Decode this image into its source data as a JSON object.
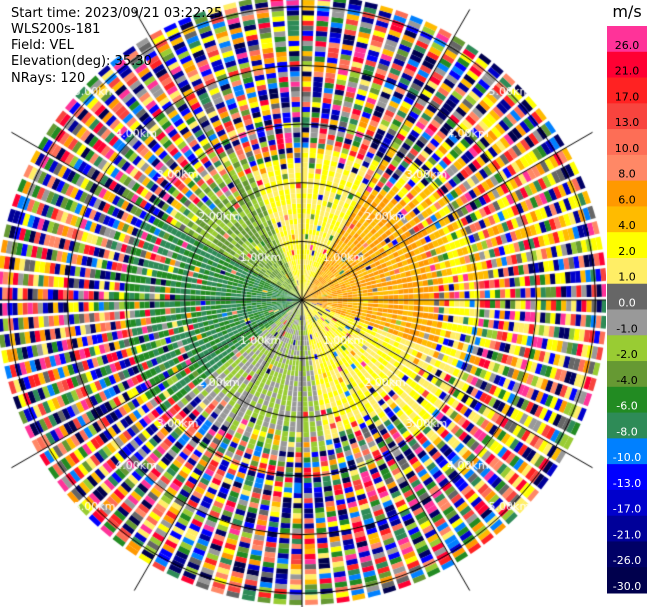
{
  "header": {
    "start_time": "Start time: 2023/09/21 03:22:25",
    "instrument": "WLS200s-181",
    "field": "Field: VEL",
    "elevation": "Elevation(deg): 35.30",
    "nrays": "NRays: 120"
  },
  "colorbar": {
    "unit": "m/s",
    "ticks": [
      "26.0",
      "21.0",
      "17.0",
      "13.0",
      "10.0",
      "8.0",
      "6.0",
      "4.0",
      "2.0",
      "1.0",
      "0.0",
      "-1.0",
      "-2.0",
      "-4.0",
      "-6.0",
      "-8.0",
      "-10.0",
      "-13.0",
      "-17.0",
      "-21.0",
      "-26.0",
      "-30.0"
    ],
    "colors": [
      "#ff3399",
      "#ff0033",
      "#ff2222",
      "#f8443e",
      "#fd6e56",
      "#ff8866",
      "#ff9900",
      "#ffbb00",
      "#ffff00",
      "#ffee66",
      "#666666",
      "#999999",
      "#99cc33",
      "#669933",
      "#228b22",
      "#2e8b57",
      "#0080ff",
      "#0000ff",
      "#0000cc",
      "#000099",
      "#000066",
      "#00004d"
    ]
  },
  "chart_data": {
    "type": "heatmap",
    "projection": "polar-ppi",
    "field": "VEL",
    "units": "m/s",
    "elevation_deg": 35.3,
    "n_rays": 120,
    "range_rings_km": [
      1.0,
      2.0,
      3.0,
      4.0,
      5.0
    ],
    "ring_labels": [
      "1.00km",
      "2.00km",
      "3.00km",
      "4.00km",
      "5.00km"
    ],
    "max_range_km": 5.2,
    "spokes_deg": [
      0,
      30,
      60,
      90,
      120,
      150,
      180,
      210,
      240,
      270,
      300,
      330
    ],
    "color_scale_m_s": [
      -30,
      -26,
      -21,
      -17,
      -13,
      -10,
      -8,
      -6,
      -4,
      -2,
      -1,
      0,
      1,
      2,
      4,
      6,
      8,
      10,
      13,
      17,
      21,
      26
    ],
    "velocity_sectors": [
      {
        "azimuth_deg": [
          0,
          30
        ],
        "range_km": [
          0.0,
          2.6
        ],
        "velocity_m_s": 2.0
      },
      {
        "azimuth_deg": [
          30,
          110
        ],
        "range_km": [
          0.0,
          2.4
        ],
        "velocity_m_s": 6.0
      },
      {
        "azimuth_deg": [
          110,
          170
        ],
        "range_km": [
          0.0,
          2.4
        ],
        "velocity_m_s": 2.0
      },
      {
        "azimuth_deg": [
          170,
          230
        ],
        "range_km": [
          0.0,
          2.6
        ],
        "velocity_m_s": -1.0
      },
      {
        "azimuth_deg": [
          230,
          300
        ],
        "range_km": [
          0.0,
          3.0
        ],
        "velocity_m_s": -6.0
      },
      {
        "azimuth_deg": [
          300,
          340
        ],
        "range_km": [
          0.0,
          2.6
        ],
        "velocity_m_s": -2.0
      },
      {
        "azimuth_deg": [
          340,
          360
        ],
        "range_km": [
          0.0,
          2.4
        ],
        "velocity_m_s": 2.0
      },
      {
        "azimuth_deg": [
          40,
          90
        ],
        "range_km": [
          2.4,
          5.2
        ],
        "velocity_m_s": 4.0
      },
      {
        "azimuth_deg": [
          90,
          140
        ],
        "range_km": [
          2.4,
          5.2
        ],
        "velocity_m_s": 2.0
      }
    ],
    "noise_region_km": [
      3.0,
      5.2
    ],
    "xlabel": "",
    "ylabel": ""
  }
}
